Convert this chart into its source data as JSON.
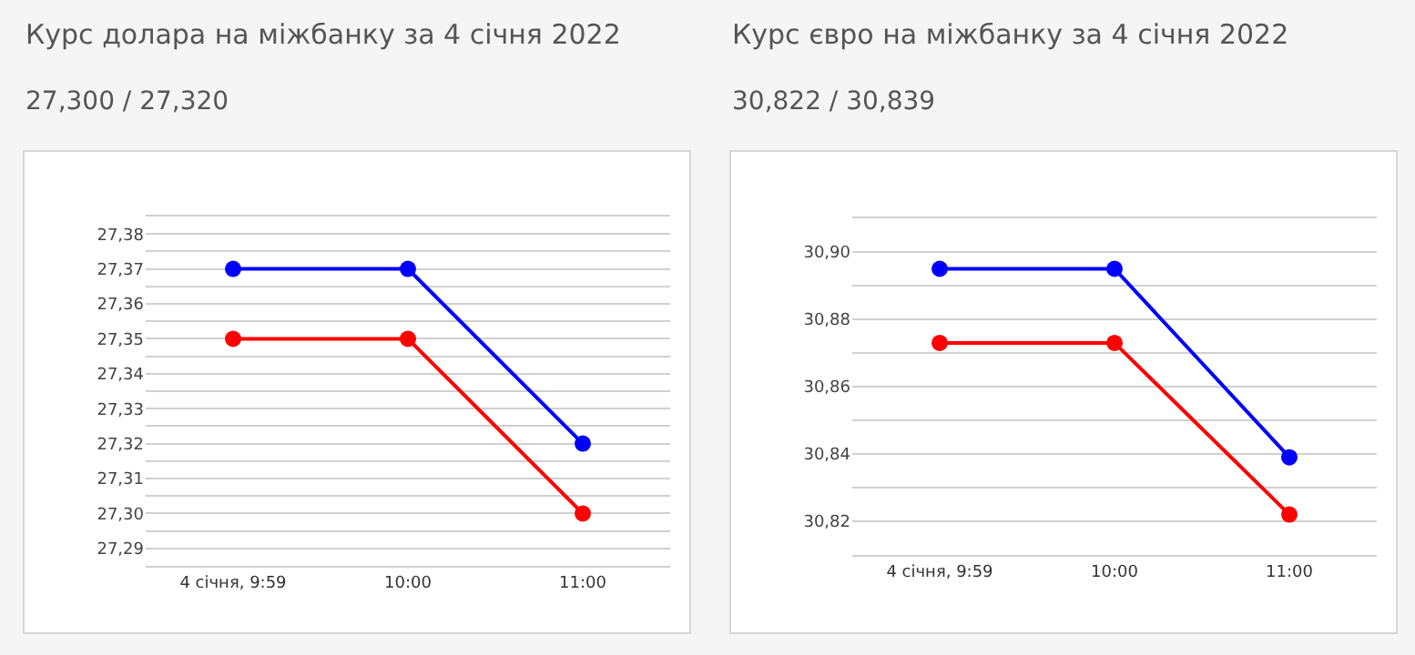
{
  "chart_data": [
    {
      "type": "line",
      "title": "Курс долара на міжбанку за 4 січня 2022",
      "subtitle": "27,300 / 27,320",
      "categories": [
        "4 січня, 9:59",
        "10:00",
        "11:00"
      ],
      "series": [
        {
          "color": "#0000ff",
          "values": [
            27.37,
            27.37,
            27.32
          ]
        },
        {
          "color": "#ff0000",
          "values": [
            27.35,
            27.35,
            27.3
          ]
        }
      ],
      "ylim": [
        27.285,
        27.385
      ],
      "yticks": [
        {
          "value": 27.285,
          "label": null
        },
        {
          "value": 27.29,
          "label": "27,29"
        },
        {
          "value": 27.295,
          "label": null
        },
        {
          "value": 27.3,
          "label": "27,30"
        },
        {
          "value": 27.305,
          "label": null
        },
        {
          "value": 27.31,
          "label": "27,31"
        },
        {
          "value": 27.315,
          "label": null
        },
        {
          "value": 27.32,
          "label": "27,32"
        },
        {
          "value": 27.325,
          "label": null
        },
        {
          "value": 27.33,
          "label": "27,33"
        },
        {
          "value": 27.335,
          "label": null
        },
        {
          "value": 27.34,
          "label": "27,34"
        },
        {
          "value": 27.345,
          "label": null
        },
        {
          "value": 27.35,
          "label": "27,35"
        },
        {
          "value": 27.355,
          "label": null
        },
        {
          "value": 27.36,
          "label": "27,36"
        },
        {
          "value": 27.365,
          "label": null
        },
        {
          "value": 27.37,
          "label": "27,37"
        },
        {
          "value": 27.375,
          "label": null
        },
        {
          "value": 27.38,
          "label": "27,38"
        },
        {
          "value": 27.385,
          "label": null
        }
      ],
      "grid": "y",
      "marker": "circle",
      "line_style": "solid"
    },
    {
      "type": "line",
      "title": "Курс євро на міжбанку за 4 січня 2022",
      "subtitle": "30,822 / 30,839",
      "categories": [
        "4 січня, 9:59",
        "10:00",
        "11:00"
      ],
      "series": [
        {
          "color": "#0000ff",
          "values": [
            30.895,
            30.895,
            30.839
          ]
        },
        {
          "color": "#ff0000",
          "values": [
            30.873,
            30.873,
            30.822
          ]
        }
      ],
      "ylim": [
        30.81,
        30.91
      ],
      "yticks": [
        {
          "value": 30.81,
          "label": null
        },
        {
          "value": 30.82,
          "label": "30,82"
        },
        {
          "value": 30.83,
          "label": null
        },
        {
          "value": 30.84,
          "label": "30,84"
        },
        {
          "value": 30.85,
          "label": null
        },
        {
          "value": 30.86,
          "label": "30,86"
        },
        {
          "value": 30.87,
          "label": null
        },
        {
          "value": 30.88,
          "label": "30,88"
        },
        {
          "value": 30.89,
          "label": null
        },
        {
          "value": 30.9,
          "label": "30,90"
        },
        {
          "value": 30.91,
          "label": null
        }
      ],
      "grid": "y",
      "marker": "circle",
      "line_style": "solid"
    }
  ]
}
